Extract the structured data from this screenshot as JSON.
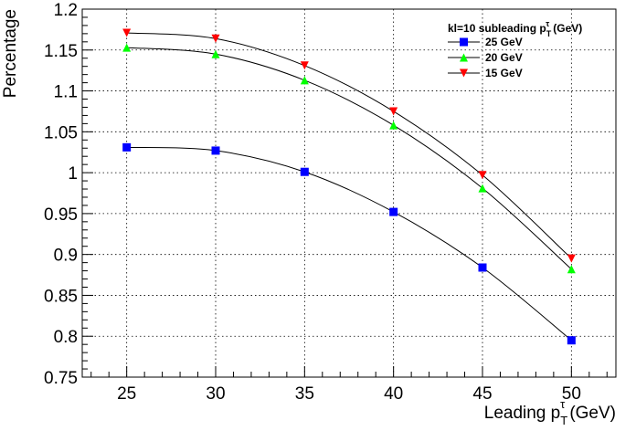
{
  "chart_data": {
    "type": "line",
    "xlabel": "Leading p",
    "xlabel_sub": "T",
    "xlabel_sup": "τ",
    "xlabel_unit": "(GeV)",
    "ylabel": "Percentage",
    "xlim": [
      22.5,
      52.5
    ],
    "ylim": [
      0.75,
      1.2
    ],
    "x_ticks": [
      25,
      30,
      35,
      40,
      45,
      50
    ],
    "y_ticks": [
      0.75,
      0.8,
      0.85,
      0.9,
      0.95,
      1,
      1.05,
      1.1,
      1.15,
      1.2
    ],
    "x_tick_labels": [
      "25",
      "30",
      "35",
      "40",
      "45",
      "50"
    ],
    "y_tick_labels": [
      "0.75",
      "0.8",
      "0.85",
      "0.9",
      "0.95",
      "1",
      "1.05",
      "1.1",
      "1.15",
      "1.2"
    ],
    "grid": true,
    "legend_position": "top-right",
    "legend_title": "kl=10 subleading p",
    "legend_title_sub": "T",
    "legend_title_sup": "τ",
    "legend_title_unit": "(GeV)",
    "x": [
      25,
      30,
      35,
      40,
      45,
      50
    ],
    "series": [
      {
        "name": "25 GeV",
        "values": [
          1.031,
          1.027,
          1.001,
          0.952,
          0.884,
          0.795
        ],
        "color": "#0000ff",
        "marker": "square"
      },
      {
        "name": "20 GeV",
        "values": [
          1.153,
          1.145,
          1.113,
          1.058,
          0.981,
          0.882
        ],
        "color": "#00ff00",
        "marker": "triangle-up"
      },
      {
        "name": "15 GeV",
        "values": [
          1.171,
          1.164,
          1.131,
          1.075,
          0.997,
          0.895
        ],
        "color": "#ff0000",
        "marker": "triangle-down"
      }
    ]
  }
}
